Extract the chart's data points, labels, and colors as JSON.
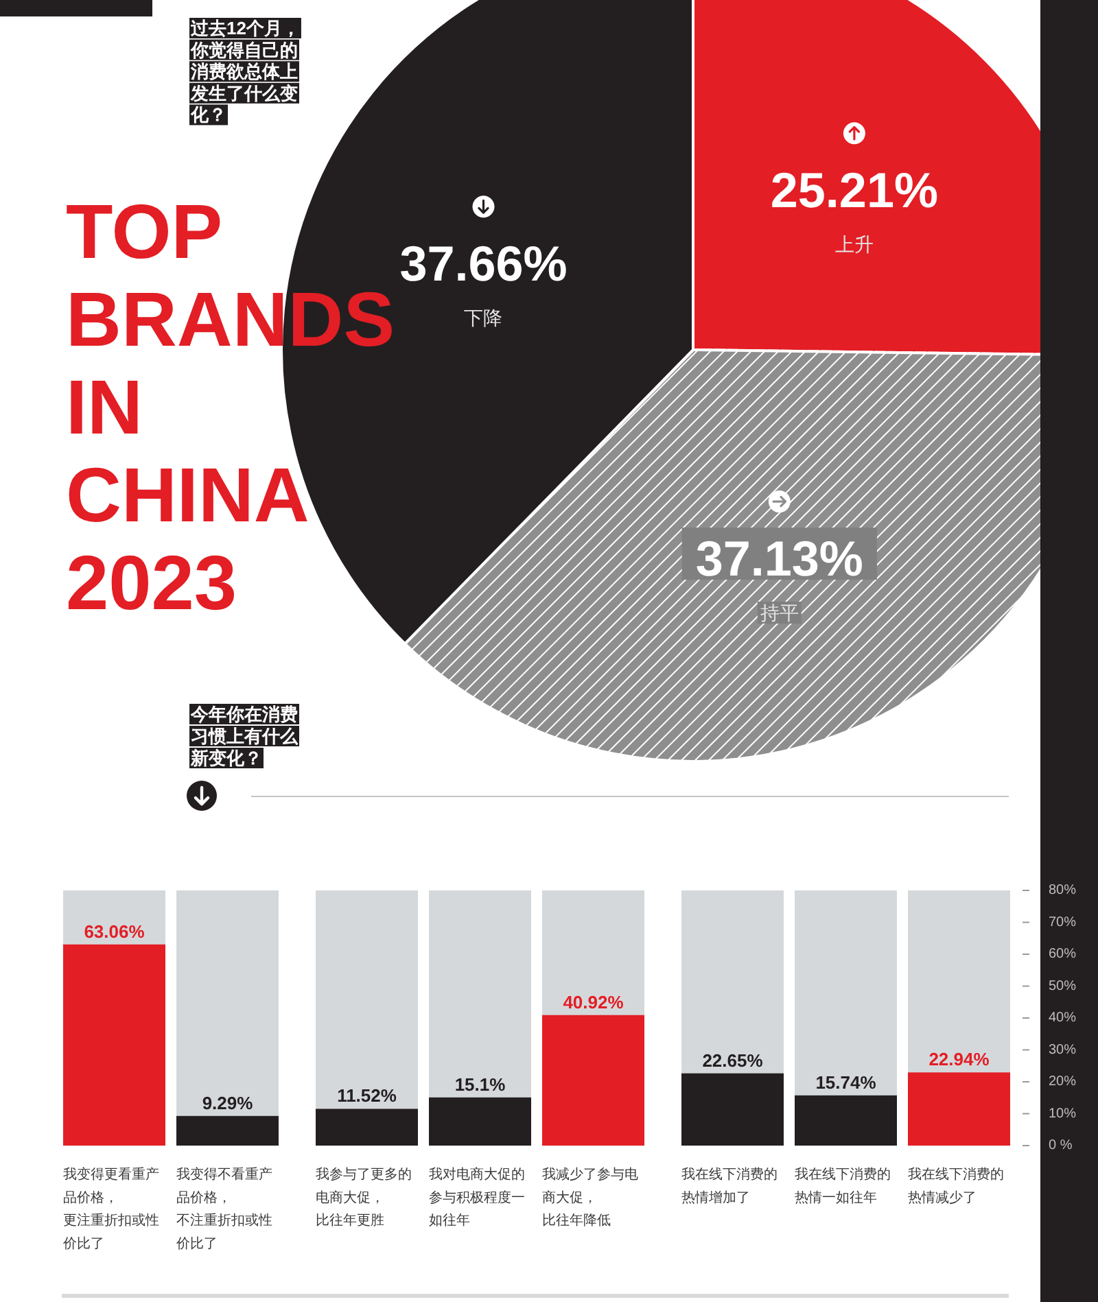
{
  "chart_data": [
    {
      "type": "pie",
      "title": "TOP BRANDS IN CHINA 2023",
      "subtitle": "过去12个月，你觉得自己的消费欲总体上发生了什么变化？",
      "categories": [
        "上升",
        "持平",
        "下降"
      ],
      "values": [
        25.21,
        37.13,
        37.66
      ],
      "colors": [
        "#e31e25",
        "#8e8e8e",
        "#231f20"
      ],
      "value_labels": [
        "25.21%",
        "37.13%",
        "37.66%"
      ]
    },
    {
      "type": "bar",
      "title": "今年你在消费习惯上有什么新变化？",
      "categories": [
        "我变得更看重产品价格，更注重折扣或性价比了",
        "我变得不看重产品价格，不注重折扣或性价比了"
      ],
      "values": [
        63.06,
        9.29
      ],
      "colors": [
        "#e31e25",
        "#231f20"
      ],
      "value_labels": [
        "63.06%",
        "9.29%"
      ],
      "ylim": [
        0,
        80
      ],
      "tick_labels": "x",
      "bands": [
        {
          "axis": "y",
          "from": 0,
          "to": 80,
          "color": "#d5d8db"
        }
      ]
    },
    {
      "type": "bar",
      "categories": [
        "我参与了更多的电商大促，比往年更胜",
        "我对电商大促的参与积极程度一如往年",
        "我减少了参与电商大促，比往年降低"
      ],
      "values": [
        11.52,
        15.1,
        40.92
      ],
      "colors": [
        "#231f20",
        "#231f20",
        "#e31e25"
      ],
      "value_labels": [
        "11.52%",
        "15.1%",
        "40.92%"
      ],
      "ylim": [
        0,
        80
      ],
      "tick_labels": "x",
      "bands": [
        {
          "axis": "y",
          "from": 0,
          "to": 80,
          "color": "#d5d8db"
        }
      ]
    },
    {
      "type": "bar",
      "categories": [
        "我在线下消费的热情增加了",
        "我在线下消费的热情一如往年",
        "我在线下消费的热情减少了"
      ],
      "values": [
        22.65,
        15.74,
        22.94
      ],
      "colors": [
        "#231f20",
        "#231f20",
        "#e31e25"
      ],
      "value_labels": [
        "22.65%",
        "15.74%",
        "22.94%"
      ],
      "ylim": [
        0,
        80
      ],
      "yticks": [
        {
          "value": 0,
          "label": "0 %"
        },
        {
          "value": 10,
          "label": "10%"
        },
        {
          "value": 20,
          "label": "20%"
        },
        {
          "value": 30,
          "label": "30%"
        },
        {
          "value": 40,
          "label": "40%"
        },
        {
          "value": 50,
          "label": "50%"
        },
        {
          "value": 60,
          "label": "60%"
        },
        {
          "value": 70,
          "label": "70%"
        },
        {
          "value": 80,
          "label": "80%"
        }
      ],
      "bands": [
        {
          "axis": "y",
          "from": 0,
          "to": 80,
          "color": "#d5d8db"
        }
      ]
    }
  ]
}
